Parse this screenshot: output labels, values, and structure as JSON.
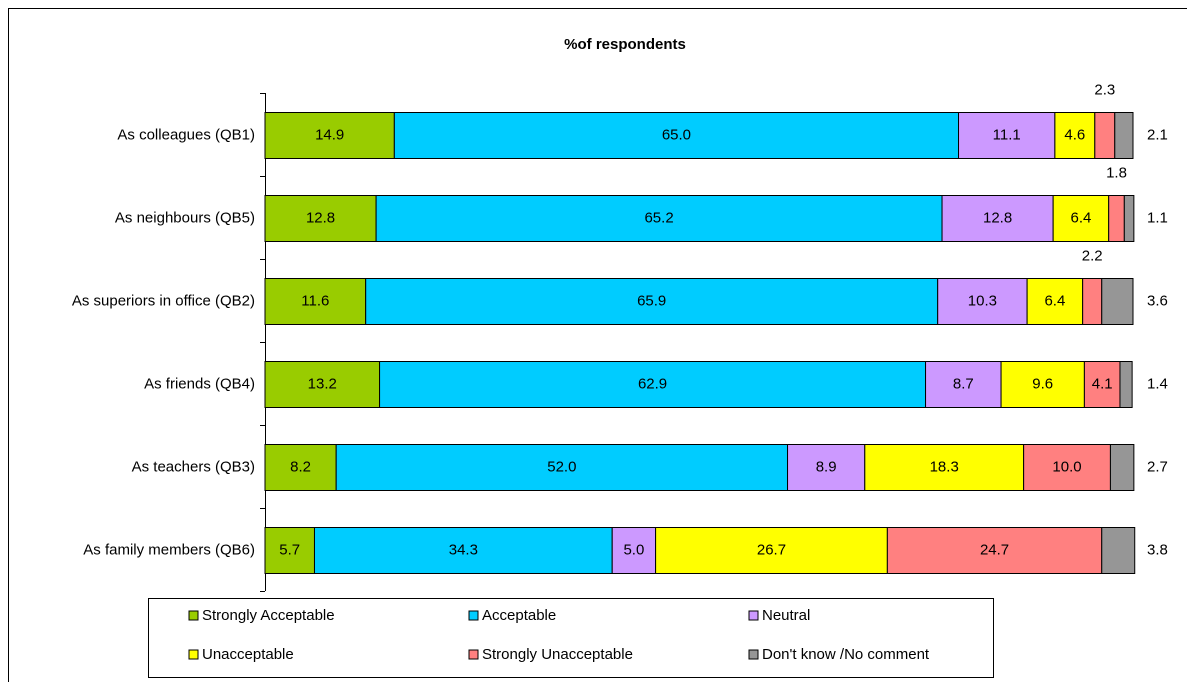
{
  "chart_data": {
    "type": "stacked-barh",
    "title": "%of respondents",
    "categories": [
      "As colleagues (QB1)",
      "As neighbours (QB5)",
      "As superiors in office (QB2)",
      "As friends (QB4)",
      "As teachers (QB3)",
      "As family members (QB6)"
    ],
    "xlim": [
      0,
      100
    ],
    "legend": "bottom",
    "series": [
      {
        "name": "Strongly Acceptable",
        "color": "#99cc00",
        "values": [
          14.9,
          12.8,
          11.6,
          13.2,
          8.2,
          5.7
        ],
        "value_labels": [
          "14.9",
          "12.8",
          "11.6",
          "13.2",
          "8.2",
          "5.7"
        ]
      },
      {
        "name": "Acceptable",
        "color": "#00ccff",
        "values": [
          65.0,
          65.2,
          65.9,
          62.9,
          52.0,
          34.3
        ],
        "value_labels": [
          "65.0",
          "65.2",
          "65.9",
          "62.9",
          "52.0",
          "34.3"
        ]
      },
      {
        "name": "Neutral",
        "color": "#cc99ff",
        "values": [
          11.1,
          12.8,
          10.3,
          8.7,
          8.9,
          5.0
        ],
        "value_labels": [
          "11.1",
          "12.8",
          "10.3",
          "8.7",
          "8.9",
          "5.0"
        ]
      },
      {
        "name": "Unacceptable",
        "color": "#ffff00",
        "values": [
          4.6,
          6.4,
          6.4,
          9.6,
          18.3,
          26.7
        ],
        "value_labels": [
          "4.6",
          "6.4",
          "6.4",
          "9.6",
          "18.3",
          "26.7"
        ]
      },
      {
        "name": "Strongly Unacceptable",
        "color": "#ff8080",
        "values": [
          2.3,
          1.8,
          2.2,
          4.1,
          10.0,
          24.7
        ],
        "value_labels": [
          "2.3",
          "1.8",
          "2.2",
          "4.1",
          "10.0",
          "24.7"
        ]
      },
      {
        "name": "Don't know /No comment",
        "color": "#969696",
        "values": [
          2.1,
          1.1,
          3.6,
          1.4,
          2.7,
          3.8
        ],
        "value_labels": [
          "2.1",
          "1.1",
          "3.6",
          "1.4",
          "2.7",
          "3.8"
        ]
      }
    ]
  }
}
